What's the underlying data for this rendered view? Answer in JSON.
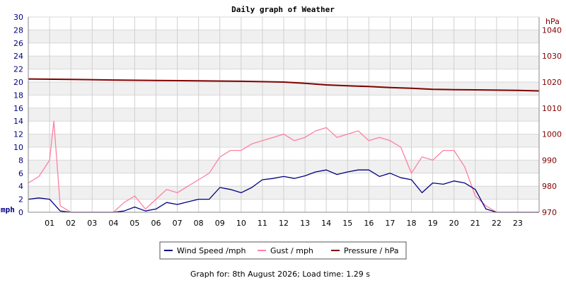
{
  "chart_data": {
    "type": "line",
    "title": "Daily graph of Weather",
    "left_axis": {
      "unit": "mph",
      "ylim": [
        0,
        30
      ],
      "ticks": [
        0,
        2,
        4,
        6,
        8,
        10,
        12,
        14,
        16,
        18,
        20,
        22,
        24,
        26,
        28,
        30
      ],
      "color": "#000080"
    },
    "right_axis": {
      "unit": "hPa",
      "ylim": [
        970,
        1045
      ],
      "ticks": [
        970,
        980,
        990,
        1000,
        1010,
        1020,
        1030,
        1040
      ],
      "color": "#800000"
    },
    "x_axis": {
      "xlim": [
        0,
        24
      ],
      "ticks": [
        "01",
        "02",
        "03",
        "04",
        "05",
        "06",
        "07",
        "08",
        "09",
        "10",
        "11",
        "12",
        "13",
        "14",
        "15",
        "16",
        "17",
        "18",
        "19",
        "20",
        "21",
        "22",
        "23"
      ]
    },
    "grid": true,
    "legend_position": "bottom-center",
    "series": [
      {
        "name": "Wind Speed /mph",
        "axis": "left",
        "color": "#000080",
        "x": [
          0,
          0.5,
          1,
          1.5,
          2,
          3,
          4,
          4.5,
          5,
          5.5,
          6,
          6.5,
          7,
          7.5,
          8,
          8.5,
          9,
          9.5,
          10,
          10.5,
          11,
          11.5,
          12,
          12.5,
          13,
          13.5,
          14,
          14.5,
          15,
          15.5,
          16,
          16.5,
          17,
          17.5,
          18,
          18.5,
          19,
          19.5,
          20,
          20.5,
          21,
          21.5,
          22,
          23,
          24
        ],
        "values": [
          2,
          2.2,
          2,
          0.2,
          0,
          0,
          0,
          0.2,
          0.8,
          0.2,
          0.5,
          1.5,
          1.2,
          1.6,
          2,
          2,
          3.8,
          3.5,
          3,
          3.8,
          5,
          5.2,
          5.5,
          5.2,
          5.6,
          6.2,
          6.5,
          5.8,
          6.2,
          6.5,
          6.5,
          5.5,
          6,
          5.3,
          5,
          3,
          4.5,
          4.3,
          4.8,
          4.5,
          3.5,
          0.5,
          0,
          0,
          0
        ]
      },
      {
        "name": "Gust / mph",
        "axis": "left",
        "color": "#ff80a0",
        "x": [
          0,
          0.5,
          1,
          1.2,
          1.5,
          2,
          3,
          4,
          4.5,
          5,
          5.5,
          6,
          6.5,
          7,
          7.5,
          8,
          8.5,
          9,
          9.5,
          10,
          10.5,
          11,
          11.5,
          12,
          12.5,
          13,
          13.5,
          14,
          14.5,
          15,
          15.5,
          16,
          16.5,
          17,
          17.5,
          18,
          18.5,
          19,
          19.5,
          20,
          20.5,
          21,
          21.5,
          22,
          23,
          24
        ],
        "values": [
          4.5,
          5.5,
          8,
          14,
          1,
          0,
          0,
          0,
          1.5,
          2.5,
          0.5,
          2,
          3.5,
          3,
          4,
          5,
          6,
          8.5,
          9.5,
          9.5,
          10.5,
          11,
          11.5,
          12,
          11,
          11.5,
          12.5,
          13,
          11.5,
          12,
          12.5,
          11,
          11.5,
          11,
          10,
          6,
          8.5,
          8,
          9.5,
          9.5,
          7,
          2.5,
          1,
          0,
          0,
          0
        ]
      },
      {
        "name": "Pressure / hPa",
        "axis": "right",
        "color": "#800000",
        "x": [
          0,
          2,
          4,
          6,
          8,
          10,
          12,
          13,
          14,
          15,
          16,
          17,
          18,
          19,
          20,
          21,
          22,
          23,
          24
        ],
        "values": [
          1021.2,
          1021.0,
          1020.8,
          1020.6,
          1020.5,
          1020.3,
          1020.0,
          1019.5,
          1018.9,
          1018.6,
          1018.3,
          1017.9,
          1017.6,
          1017.2,
          1017.1,
          1017.0,
          1016.9,
          1016.8,
          1016.6
        ]
      }
    ]
  },
  "footer": "Graph for: 8th August 2026; Load time: 1.29 s"
}
